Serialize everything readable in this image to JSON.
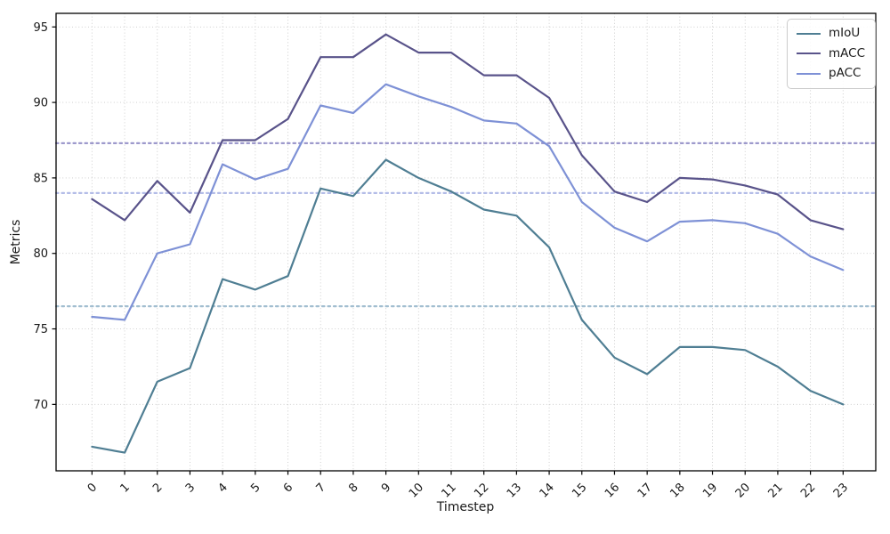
{
  "figure": {
    "kind": "matplotlib-style line chart",
    "background": "#ffffff"
  },
  "chart_data": {
    "type": "line",
    "title": "",
    "xlabel": "Timestep",
    "ylabel": "Metrics",
    "x": [
      0,
      1,
      2,
      3,
      4,
      5,
      6,
      7,
      8,
      9,
      10,
      11,
      12,
      13,
      14,
      15,
      16,
      17,
      18,
      19,
      20,
      21,
      22,
      23
    ],
    "series": [
      {
        "name": "mIoU",
        "color": "#4f7e93",
        "values": [
          67.2,
          66.8,
          71.5,
          72.4,
          78.3,
          77.6,
          78.5,
          84.3,
          83.8,
          86.2,
          85.0,
          84.1,
          82.9,
          82.5,
          80.4,
          75.6,
          73.1,
          72.0,
          73.8,
          73.8,
          73.6,
          72.5,
          70.9,
          70.0
        ]
      },
      {
        "name": "mACC",
        "color": "#59538a",
        "values": [
          83.6,
          82.2,
          84.8,
          82.7,
          87.5,
          87.5,
          88.9,
          93.0,
          93.0,
          94.5,
          93.3,
          93.3,
          91.8,
          91.8,
          90.3,
          86.5,
          84.1,
          83.4,
          85.0,
          84.9,
          84.5,
          83.9,
          82.2,
          81.6
        ]
      },
      {
        "name": "pACC",
        "color": "#7e91d6",
        "values": [
          75.8,
          75.6,
          80.0,
          80.6,
          85.9,
          84.9,
          85.6,
          89.8,
          89.3,
          91.2,
          90.4,
          89.7,
          88.8,
          88.6,
          87.1,
          83.4,
          81.7,
          80.8,
          82.1,
          82.2,
          82.0,
          81.3,
          79.8,
          78.9
        ]
      }
    ],
    "mean_lines": [
      {
        "series": "mACC",
        "value": 87.3,
        "color": "#9d99cc",
        "style": "dotted"
      },
      {
        "series": "pACC",
        "value": 84.0,
        "color": "#b3bce7",
        "style": "dotted"
      },
      {
        "series": "mIoU",
        "value": 76.5,
        "color": "#a2bed0",
        "style": "dotted"
      }
    ],
    "xticks": [
      0,
      1,
      2,
      3,
      4,
      5,
      6,
      7,
      8,
      9,
      10,
      11,
      12,
      13,
      14,
      15,
      16,
      17,
      18,
      19,
      20,
      21,
      22,
      23
    ],
    "yticks": [
      70,
      75,
      80,
      85,
      90,
      95
    ],
    "xlim": [
      -1.1,
      24.0
    ],
    "ylim": [
      65.6,
      95.9
    ],
    "grid": true,
    "grid_style": "dotted",
    "legend_position": "upper right",
    "legend": [
      "mIoU",
      "mACC",
      "pACC"
    ],
    "x_tick_rotation": 45
  }
}
